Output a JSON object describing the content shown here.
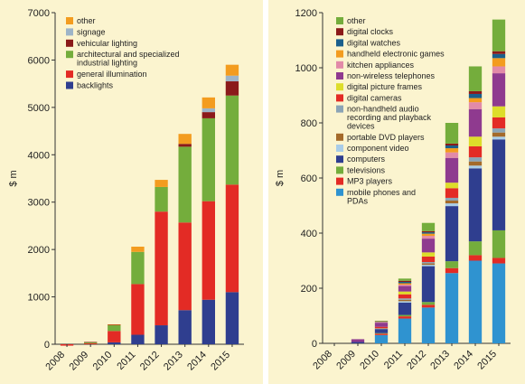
{
  "colors": {
    "other_orange": "#f39c1f",
    "signage": "#9db4c8",
    "vehicular": "#8b1a1a",
    "green": "#74ad3c",
    "red": "#e32b25",
    "navy": "#2f3e8f",
    "yellow": "#dddd2a",
    "purple": "#8f3a8f",
    "blue": "#2f93d0",
    "teal": "#1a5f8c",
    "brown": "#a46a2a",
    "lightblue": "#a9cde8",
    "grey": "#8ba4b6",
    "pink": "#e28aa8"
  },
  "chart_data": [
    {
      "type": "bar",
      "stacked": true,
      "ylabel": "$ m",
      "ylim": [
        0,
        7000
      ],
      "yticks": [
        "0",
        "1000",
        "2000",
        "3000",
        "4000",
        "5000",
        "6000",
        "7000"
      ],
      "ytick_values": [
        0,
        1000,
        2000,
        3000,
        4000,
        5000,
        6000,
        7000
      ],
      "categories": [
        "2008",
        "2009",
        "2010",
        "2011",
        "2012",
        "2013",
        "2014",
        "2015"
      ],
      "legend_position": "top-left",
      "series": [
        {
          "name": "backlights",
          "color": "#2f3e8f",
          "values": [
            0,
            0,
            40,
            200,
            400,
            720,
            940,
            1100
          ]
        },
        {
          "name": "general illumination",
          "color": "#e32b25",
          "values": [
            -30,
            20,
            240,
            1070,
            2400,
            1850,
            2080,
            2270
          ]
        },
        {
          "name": "architectural and specialized industrial lighting",
          "color": "#74ad3c",
          "values": [
            0,
            20,
            120,
            680,
            520,
            1600,
            1750,
            1880
          ]
        },
        {
          "name": "vehicular lighting",
          "color": "#8b1a1a",
          "values": [
            0,
            10,
            10,
            0,
            0,
            60,
            130,
            300
          ]
        },
        {
          "name": "signage",
          "color": "#9db4c8",
          "values": [
            0,
            0,
            0,
            0,
            0,
            0,
            80,
            120
          ]
        },
        {
          "name": "other",
          "color": "#f39c1f",
          "values": [
            0,
            0,
            10,
            110,
            150,
            210,
            230,
            230
          ]
        }
      ]
    },
    {
      "type": "bar",
      "stacked": true,
      "ylabel": "$ m",
      "ylim": [
        0,
        1200
      ],
      "yticks": [
        "0",
        "200",
        "400",
        "600",
        "800",
        "1000",
        "1200"
      ],
      "ytick_values": [
        0,
        200,
        400,
        600,
        800,
        1000,
        1200
      ],
      "categories": [
        "2008",
        "2009",
        "2010",
        "2011",
        "2012",
        "2013",
        "2014",
        "2015"
      ],
      "legend_position": "top-left",
      "series": [
        {
          "name": "mobile phones and PDAs",
          "color": "#2f93d0",
          "values": [
            0,
            0,
            30,
            90,
            130,
            255,
            300,
            290
          ]
        },
        {
          "name": "MP3 players",
          "color": "#e32b25",
          "values": [
            0,
            0,
            5,
            8,
            10,
            18,
            20,
            20
          ]
        },
        {
          "name": "televisions",
          "color": "#74ad3c",
          "values": [
            0,
            0,
            2,
            5,
            10,
            25,
            50,
            100
          ]
        },
        {
          "name": "computers",
          "color": "#2f3e8f",
          "values": [
            0,
            5,
            15,
            45,
            130,
            200,
            265,
            330
          ]
        },
        {
          "name": "component video",
          "color": "#a9cde8",
          "values": [
            0,
            0,
            1,
            5,
            5,
            10,
            10,
            10
          ]
        },
        {
          "name": "portable DVD players",
          "color": "#a46a2a",
          "values": [
            0,
            0,
            1,
            5,
            5,
            10,
            15,
            15
          ]
        },
        {
          "name": "non-handheld audio recording and playback devices",
          "color": "#8ba4b6",
          "values": [
            0,
            0,
            1,
            5,
            5,
            10,
            15,
            15
          ]
        },
        {
          "name": "digital cameras",
          "color": "#e32b25",
          "values": [
            0,
            0,
            5,
            15,
            20,
            35,
            40,
            40
          ]
        },
        {
          "name": "digital picture frames",
          "color": "#dddd2a",
          "values": [
            0,
            0,
            0,
            10,
            15,
            20,
            35,
            40
          ]
        },
        {
          "name": "non-wireless telephones",
          "color": "#8f3a8f",
          "values": [
            0,
            10,
            15,
            20,
            50,
            90,
            100,
            120
          ]
        },
        {
          "name": "kitchen appliances",
          "color": "#e28aa8",
          "values": [
            0,
            0,
            2,
            5,
            10,
            20,
            25,
            25
          ]
        },
        {
          "name": "handheld electronic games",
          "color": "#f39c1f",
          "values": [
            0,
            0,
            1,
            5,
            8,
            15,
            15,
            30
          ]
        },
        {
          "name": "digital watches",
          "color": "#1a5f8c",
          "values": [
            0,
            0,
            1,
            5,
            5,
            10,
            15,
            15
          ]
        },
        {
          "name": "digital clocks",
          "color": "#8b1a1a",
          "values": [
            0,
            0,
            1,
            4,
            4,
            7,
            10,
            10
          ]
        },
        {
          "name": "other",
          "color": "#74ad3c",
          "values": [
            0,
            0,
            2,
            8,
            30,
            75,
            90,
            115
          ]
        }
      ]
    }
  ]
}
